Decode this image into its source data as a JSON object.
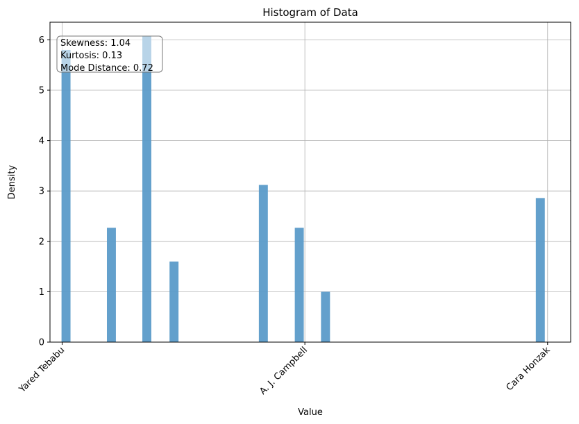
{
  "chart_data": {
    "type": "bar",
    "title": "Histogram of Data",
    "xlabel": "Value",
    "ylabel": "Density",
    "ylim": [
      0,
      6.35
    ],
    "yticks": [
      0,
      1,
      2,
      3,
      4,
      5,
      6
    ],
    "xticks": [
      {
        "label": "Yared Tebabu",
        "pos": 0
      },
      {
        "label": "A. J. Campbell",
        "pos": 1
      },
      {
        "label": "Cara Honzak",
        "pos": 2
      }
    ],
    "xlim": [
      -0.05,
      2.095
    ],
    "grid": true,
    "bar_color": "#5b9bc9",
    "bars": [
      {
        "x": 0.016,
        "y": 5.8
      },
      {
        "x": 0.203,
        "y": 2.27
      },
      {
        "x": 0.349,
        "y": 6.07
      },
      {
        "x": 0.461,
        "y": 1.6
      },
      {
        "x": 0.829,
        "y": 3.12
      },
      {
        "x": 0.977,
        "y": 2.27
      },
      {
        "x": 1.085,
        "y": 1.0
      },
      {
        "x": 1.97,
        "y": 2.86
      }
    ],
    "bar_width": 0.037,
    "annotation": [
      "Skewness: 1.04",
      "Kurtosis: 0.13",
      "Mode Distance: 0.72"
    ]
  }
}
